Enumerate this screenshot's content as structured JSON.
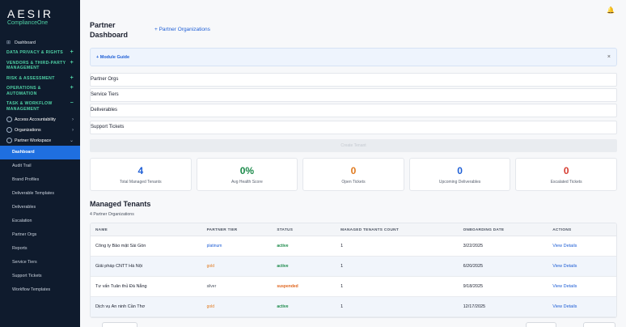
{
  "sidebar": {
    "logo": "AESIR",
    "logo_sub": "ComplianceOne",
    "dashboard": "Dashboard",
    "sections": [
      {
        "label": "DATA PRIVACY & RIGHTS",
        "toggle": "+"
      },
      {
        "label": "VENDORS & THIRD-PARTY MANAGEMENT",
        "toggle": "+"
      },
      {
        "label": "RISK & ASSESSMENT",
        "toggle": "+"
      },
      {
        "label": "OPERATIONS & AUTOMATION",
        "toggle": "+"
      },
      {
        "label": "TASK & WORKFLOW MANAGEMENT",
        "toggle": "−"
      }
    ],
    "groups": [
      {
        "label": "Access Accountability",
        "chevron": "›"
      },
      {
        "label": "Organizations",
        "chevron": "›"
      },
      {
        "label": "Partner Workspace",
        "chevron": "⌄"
      }
    ],
    "sub_items": [
      "Dashboard",
      "Audit Trail",
      "Brand Profiles",
      "Deliverable Templates",
      "Deliverables",
      "Escalation",
      "Partner Orgs",
      "Reports",
      "Service Tiers",
      "Support Tickets",
      "Workflow Templates"
    ]
  },
  "header": {
    "title_line1": "Partner",
    "title_line2": "Dashboard",
    "link": "+ Partner Organizations"
  },
  "guide": {
    "label": "+  Module Guide",
    "close": "×"
  },
  "accordions": [
    "Partner Orgs",
    "Service Tiers",
    "Deliverables",
    "Support Tickets"
  ],
  "disabled_bar": "Create Tenant",
  "kpis": [
    {
      "value": "4",
      "label": "Total Managed Tenants",
      "color": "#1f5fd6"
    },
    {
      "value": "0%",
      "label": "Avg Health Score",
      "color": "#1b8a4a"
    },
    {
      "value": "0",
      "label": "Open Tickets",
      "color": "#e07a1f"
    },
    {
      "value": "0",
      "label": "Upcoming Deliverables",
      "color": "#1f5fd6"
    },
    {
      "value": "0",
      "label": "Escalated Tickets",
      "color": "#d63b2f"
    }
  ],
  "tenants": {
    "title": "Managed Tenants",
    "count": "4 Partner Organizations",
    "columns": [
      "NAME",
      "PARTNER TIER",
      "STATUS",
      "MANAGED TENANTS COUNT",
      "ONBOARDING DATE",
      "ACTIONS"
    ],
    "rows": [
      {
        "name": "Công ty Bảo mật Sài Gòn",
        "tier": "platinum",
        "status": "active",
        "count": "1",
        "date": "3/22/2025",
        "action": "View Details"
      },
      {
        "name": "Giải pháp CNTT Hà Nội",
        "tier": "gold",
        "status": "active",
        "count": "1",
        "date": "6/20/2025",
        "action": "View Details"
      },
      {
        "name": "Tư vấn Tuân thủ Đà Nẵng",
        "tier": "silver",
        "status": "suspended",
        "count": "1",
        "date": "9/18/2025",
        "action": "View Details"
      },
      {
        "name": "Dịch vụ An ninh Cần Thơ",
        "tier": "gold",
        "status": "active",
        "count": "1",
        "date": "12/17/2025",
        "action": "View Details"
      }
    ]
  }
}
